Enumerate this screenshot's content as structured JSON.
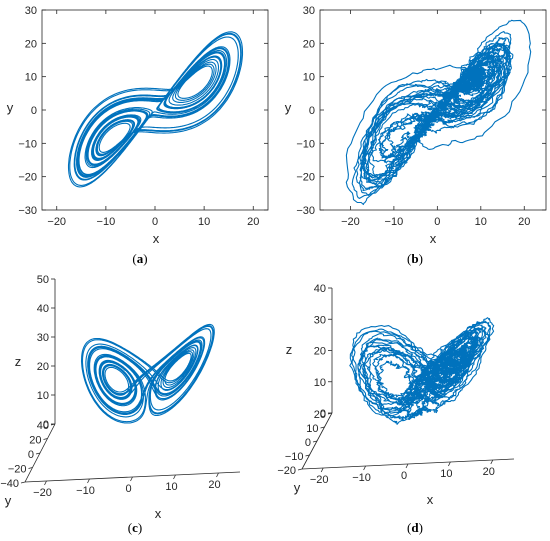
{
  "colors": {
    "line": "#0072BD",
    "axis": "#262626",
    "background": "#ffffff"
  },
  "chart_data": [
    {
      "panel": "a",
      "type": "line",
      "projection": "2d",
      "caption_open": "(",
      "caption_letter": "a",
      "caption_close": ")",
      "xlabel": "x",
      "ylabel": "y",
      "xlim": [
        -23,
        23
      ],
      "ylim": [
        -30,
        30
      ],
      "xticks": [
        -20,
        -10,
        0,
        10,
        20
      ],
      "yticks": [
        -30,
        -20,
        -10,
        0,
        10,
        20,
        30
      ],
      "xtick_labels": [
        "−20",
        "−10",
        "0",
        "10",
        "20"
      ],
      "ytick_labels": [
        "−30",
        "−20",
        "−10",
        "0",
        "10",
        "20",
        "30"
      ],
      "grid": false,
      "series": [
        {
          "kind": "lorenz-xy",
          "x": [
            -8,
            -14,
            -18,
            -12,
            -4,
            2,
            8,
            14,
            18,
            22,
            16,
            8,
            0,
            -8,
            -16,
            -22,
            -18,
            -10,
            0,
            10,
            20,
            14,
            4,
            -6
          ],
          "y": [
            -10,
            -18,
            -24,
            -16,
            -6,
            2,
            8,
            16,
            22,
            26,
            18,
            10,
            0,
            -10,
            -18,
            -26,
            -22,
            -12,
            0,
            12,
            22,
            16,
            6,
            -6
          ]
        }
      ]
    },
    {
      "panel": "b",
      "type": "line",
      "projection": "2d",
      "caption_open": "(",
      "caption_letter": "b",
      "caption_close": ")",
      "xlabel": "x",
      "ylabel": "y",
      "xlim": [
        -27,
        25
      ],
      "ylim": [
        -30,
        30
      ],
      "xticks": [
        -20,
        -10,
        0,
        10,
        20
      ],
      "yticks": [
        -30,
        -20,
        -10,
        0,
        10,
        20,
        30
      ],
      "xtick_labels": [
        "−20",
        "−10",
        "0",
        "10",
        "20"
      ],
      "ytick_labels": [
        "−30",
        "−20",
        "−10",
        "0",
        "10",
        "20",
        "30"
      ],
      "grid": false,
      "series": [
        {
          "kind": "noisy-xy",
          "x": [
            -10,
            -16,
            -26,
            -18,
            -6,
            2,
            10,
            18,
            24,
            20,
            12,
            4,
            -4,
            -12,
            -20,
            -14,
            -6,
            2,
            10,
            16,
            22,
            14,
            0,
            -10
          ],
          "y": [
            -12,
            -20,
            -26,
            -18,
            -8,
            0,
            10,
            18,
            24,
            20,
            14,
            4,
            -6,
            -14,
            -22,
            -16,
            -6,
            4,
            12,
            18,
            26,
            16,
            2,
            -10
          ]
        }
      ]
    },
    {
      "panel": "c",
      "type": "line",
      "projection": "3d",
      "caption_open": "(",
      "caption_letter": "c",
      "caption_close": ")",
      "xlabel": "x",
      "ylabel": "y",
      "zlabel": "z",
      "xlim": [
        -25,
        25
      ],
      "ylim": [
        -40,
        40
      ],
      "zlim": [
        0,
        50
      ],
      "xticks": [
        -20,
        -10,
        0,
        10,
        20
      ],
      "yticks": [
        -40,
        -20,
        0,
        20,
        40
      ],
      "zticks": [
        0,
        10,
        20,
        30,
        40,
        50
      ],
      "xtick_labels": [
        "−20",
        "−10",
        "0",
        "10",
        "20"
      ],
      "ytick_labels": [
        "−40",
        "−20",
        "0",
        "20",
        "40"
      ],
      "ztick_labels": [
        "0",
        "10",
        "20",
        "30",
        "40",
        "50"
      ],
      "grid": false,
      "series": [
        {
          "kind": "lorenz-xyz",
          "x": [
            -16,
            -12,
            -6,
            0,
            6,
            12,
            16,
            10,
            2,
            -6,
            -12,
            -16
          ],
          "y": [
            -20,
            -14,
            -6,
            0,
            6,
            14,
            20,
            12,
            2,
            -6,
            -14,
            -20
          ],
          "z": [
            14,
            24,
            30,
            26,
            20,
            28,
            36,
            42,
            30,
            18,
            12,
            10
          ]
        }
      ]
    },
    {
      "panel": "d",
      "type": "line",
      "projection": "3d",
      "caption_open": "(",
      "caption_letter": "d",
      "caption_close": ")",
      "xlabel": "x",
      "ylabel": "y",
      "zlabel": "z",
      "xlim": [
        -25,
        25
      ],
      "ylim": [
        -20,
        20
      ],
      "zlim": [
        0,
        40
      ],
      "xticks": [
        -20,
        -10,
        0,
        10,
        20
      ],
      "yticks": [
        -20,
        -10,
        0,
        10,
        20
      ],
      "zticks": [
        0,
        10,
        20,
        30,
        40
      ],
      "xtick_labels": [
        "−20",
        "−10",
        "0",
        "10",
        "20"
      ],
      "ytick_labels": [
        "−20",
        "−10",
        "0",
        "10",
        "20"
      ],
      "ztick_labels": [
        "0",
        "10",
        "20",
        "30",
        "40"
      ],
      "grid": false,
      "series": [
        {
          "kind": "noisy-xyz",
          "x": [
            -14,
            -8,
            0,
            8,
            16,
            10,
            2,
            -6,
            -12,
            -16
          ],
          "y": [
            -10,
            -4,
            2,
            8,
            12,
            6,
            0,
            -6,
            -10,
            -12
          ],
          "z": [
            10,
            22,
            30,
            34,
            40,
            28,
            20,
            14,
            8,
            6
          ]
        }
      ]
    }
  ]
}
